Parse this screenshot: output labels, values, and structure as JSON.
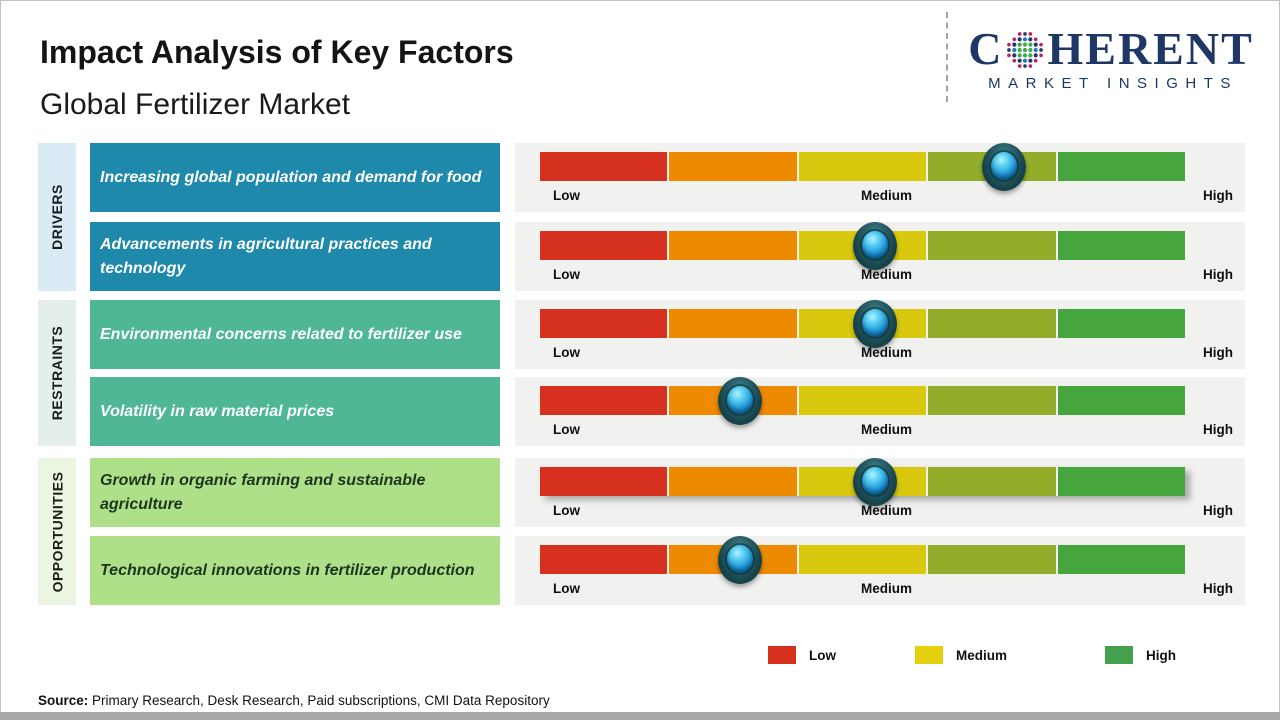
{
  "header": {
    "title": "Impact Analysis of Key Factors",
    "subtitle": "Global Fertilizer Market",
    "logo": {
      "brand_first": "C",
      "brand_rest": "HERENT",
      "tagline": "MARKET INSIGHTS"
    }
  },
  "sections": [
    {
      "label": "DRIVERS"
    },
    {
      "label": "RESTRAINTS"
    },
    {
      "label": "OPPORTUNITIES"
    }
  ],
  "rows": [
    {
      "section": "Drivers",
      "text": "Increasing global population and demand for food",
      "impact_position": 0.72
    },
    {
      "section": "Drivers",
      "text": "Advancements in agricultural practices and technology",
      "impact_position": 0.52
    },
    {
      "section": "Restraints",
      "text": "Environmental concerns related to fertilizer use",
      "impact_position": 0.52
    },
    {
      "section": "Restraints",
      "text": "Volatility in raw material prices",
      "impact_position": 0.31
    },
    {
      "section": "Opportunities",
      "text": "Growth in organic farming and sustainable agriculture",
      "impact_position": 0.52
    },
    {
      "section": "Opportunities",
      "text": "Technological innovations in fertilizer production",
      "impact_position": 0.31
    }
  ],
  "gauge": {
    "low_label": "Low",
    "medium_label": "Medium",
    "high_label": "High",
    "segment_colors": [
      "#d6311f",
      "#ee8a00",
      "#d8c90e",
      "#93ad2b",
      "#46a53d"
    ]
  },
  "legend": [
    {
      "label": "Low",
      "color": "#d6311f"
    },
    {
      "label": "Medium",
      "color": "#e5d00e"
    },
    {
      "label": "High",
      "color": "#44a04c"
    }
  ],
  "source": {
    "prefix": "Source:",
    "text": "Primary Research, Desk Research, Paid subscriptions, CMI Data Repository"
  },
  "chart_data": {
    "type": "gauge",
    "title": "Impact Analysis of Key Factors",
    "subtitle": "Global Fertilizer Market",
    "scale": {
      "ticks": [
        "Low",
        "Medium",
        "High"
      ],
      "range": [
        0,
        1
      ],
      "segments": [
        "red",
        "orange",
        "yellow",
        "yellow-green",
        "green"
      ]
    },
    "factors": [
      {
        "category": "Drivers",
        "factor": "Increasing global population and demand for food",
        "impact_position": 0.72,
        "impact_level": "Medium-High"
      },
      {
        "category": "Drivers",
        "factor": "Advancements in agricultural practices and technology",
        "impact_position": 0.52,
        "impact_level": "Medium"
      },
      {
        "category": "Restraints",
        "factor": "Environmental concerns related to fertilizer use",
        "impact_position": 0.52,
        "impact_level": "Medium"
      },
      {
        "category": "Restraints",
        "factor": "Volatility in raw material prices",
        "impact_position": 0.31,
        "impact_level": "Low-Medium"
      },
      {
        "category": "Opportunities",
        "factor": "Growth in organic farming and sustainable agriculture",
        "impact_position": 0.52,
        "impact_level": "Medium"
      },
      {
        "category": "Opportunities",
        "factor": "Technological innovations in fertilizer production",
        "impact_position": 0.31,
        "impact_level": "Low-Medium"
      }
    ],
    "legend_position": "bottom",
    "legend": [
      {
        "label": "Low",
        "color": "#d6311f"
      },
      {
        "label": "Medium",
        "color": "#e5d00e"
      },
      {
        "label": "High",
        "color": "#44a04c"
      }
    ]
  }
}
